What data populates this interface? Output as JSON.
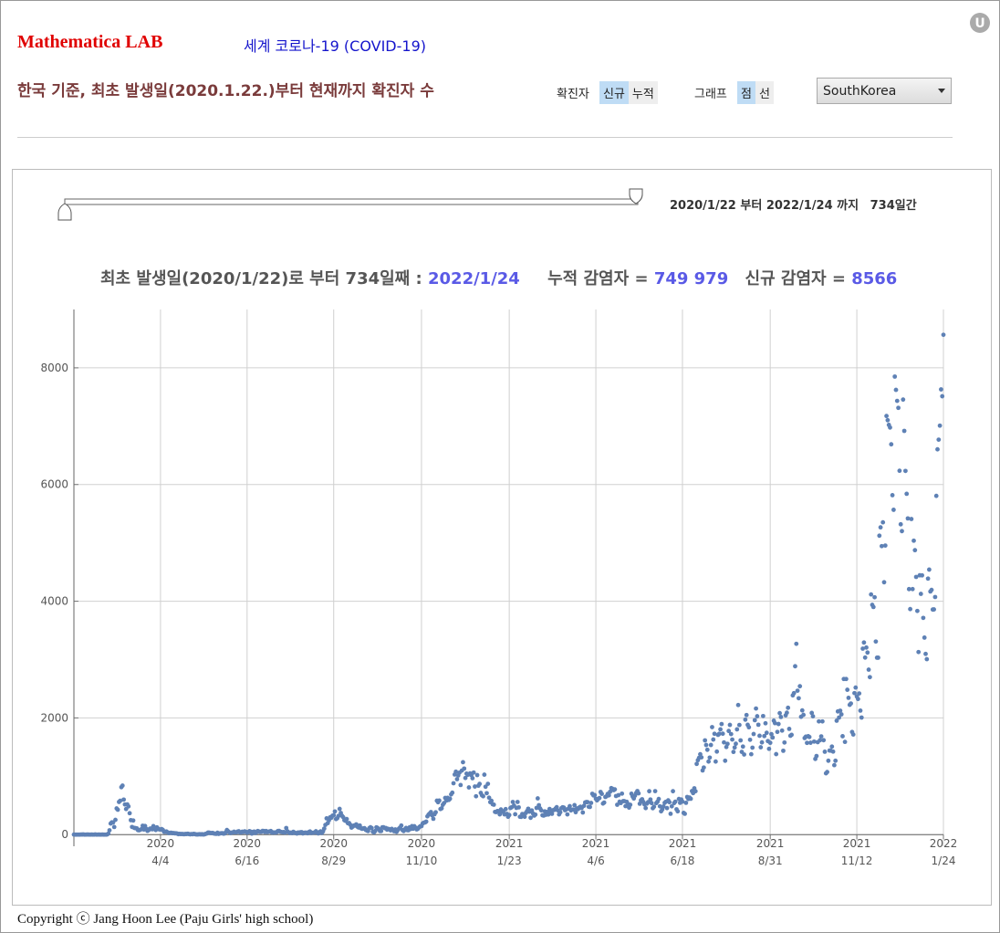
{
  "header": {
    "brand": "Mathematica LAB",
    "title": "세계 코로나-19 (COVID-19)",
    "subtitle": "한국 기준, 최초 발생일(2020.1.22.)부터 현재까지 확진자 수"
  },
  "controls": {
    "case_label": "확진자",
    "case_options": [
      "신규",
      "누적"
    ],
    "graph_label": "그래프",
    "graph_options": [
      "점",
      "선"
    ],
    "country": "SouthKorea"
  },
  "range": {
    "start": "2020/1/22",
    "from_word": "부터",
    "end": "2022/1/24",
    "to_word": "까지",
    "days": "734일간"
  },
  "chart_data": {
    "type": "scatter",
    "title": "최초 발생일(2020/1/22)로 부터 734일째 :",
    "title_date": "2022/1/24",
    "total_label": "누적 감염자 =",
    "total": "749 979",
    "new_label": "신규 감염자 =",
    "new": "8566",
    "color": "#5e81b5",
    "grid": true,
    "xlim": [
      0,
      733
    ],
    "xticks": [
      {
        "value": 73,
        "label": "2020\n4/4"
      },
      {
        "value": 146,
        "label": "2020\n6/16"
      },
      {
        "value": 219,
        "label": "2020\n8/29"
      },
      {
        "value": 293,
        "label": "2020\n11/10"
      },
      {
        "value": 367,
        "label": "2021\n1/23"
      },
      {
        "value": 440,
        "label": "2021\n4/6"
      },
      {
        "value": 513,
        "label": "2021\n6/18"
      },
      {
        "value": 587,
        "label": "2021\n8/31"
      },
      {
        "value": 660,
        "label": "2021\n11/12"
      },
      {
        "value": 733,
        "label": "2022\n1/24"
      }
    ],
    "ylim": [
      -200,
      9000
    ],
    "yticks": [
      0,
      2000,
      4000,
      6000,
      8000
    ],
    "values": [
      1,
      0,
      0,
      0,
      0,
      0,
      2,
      1,
      3,
      0,
      0,
      1,
      2,
      0,
      0,
      1,
      0,
      0,
      3,
      0,
      0,
      1,
      0,
      0,
      1,
      0,
      0,
      0,
      2,
      16,
      74,
      190,
      210,
      207,
      130,
      253,
      449,
      427,
      560,
      580,
      813,
      840,
      600,
      516,
      438,
      518,
      483,
      367,
      248,
      131,
      242,
      114,
      110,
      107,
      76,
      74,
      84,
      93,
      152,
      87,
      147,
      98,
      64,
      76,
      100,
      104,
      91,
      146,
      105,
      78,
      125,
      101,
      89,
      86,
      94,
      81,
      47,
      47,
      53,
      39,
      27,
      30,
      32,
      25,
      27,
      22,
      22,
      18,
      8,
      13,
      9,
      11,
      8,
      6,
      10,
      10,
      14,
      9,
      4,
      9,
      6,
      13,
      8,
      3,
      2,
      4,
      6,
      3,
      6,
      2,
      4,
      12,
      18,
      34,
      35,
      27,
      26,
      29,
      19,
      15,
      13,
      32,
      12,
      20,
      23,
      25,
      16,
      19,
      40,
      79,
      58,
      39,
      27,
      35,
      38,
      49,
      39,
      39,
      51,
      57,
      37,
      38,
      50,
      45,
      56,
      48,
      34,
      43,
      59,
      49,
      17,
      46,
      51,
      28,
      42,
      62,
      51,
      46,
      48,
      63,
      62,
      44,
      61,
      43,
      50,
      54,
      61,
      33,
      39,
      36,
      35,
      44,
      62,
      63,
      50,
      45,
      39,
      45,
      33,
      113,
      58,
      39,
      28,
      34,
      26,
      48,
      34,
      26,
      18,
      36,
      28,
      41,
      43,
      20,
      30,
      34,
      33,
      23,
      43,
      54,
      28,
      31,
      33,
      36,
      58,
      34,
      20,
      43,
      56,
      28,
      54,
      103,
      166,
      279,
      197,
      246,
      297,
      288,
      324,
      332,
      397,
      266,
      280,
      320,
      441,
      371,
      323,
      299,
      248,
      235,
      267,
      195,
      198,
      168,
      119,
      136,
      156,
      155,
      176,
      136,
      121,
      156,
      109,
      99,
      106,
      110,
      82,
      70,
      61,
      110,
      126,
      113,
      50,
      38,
      61,
      125,
      114,
      95,
      61,
      61,
      125,
      126,
      110,
      113,
      84,
      98,
      91,
      73,
      98,
      76,
      58,
      89,
      47,
      77,
      102,
      121,
      155,
      77,
      61,
      91,
      114,
      76,
      75,
      125,
      97,
      146,
      101,
      143,
      118,
      89,
      100,
      126,
      143,
      145,
      191,
      205,
      208,
      223,
      313,
      343,
      363,
      386,
      330,
      271,
      349,
      382,
      581,
      555,
      583,
      438,
      451,
      511,
      540,
      629,
      583,
      631,
      594,
      615,
      689,
      718,
      880,
      1030,
      1078,
      950,
      1014,
      1062,
      850,
      1097,
      1241,
      1132,
      970,
      1045,
      1025,
      808,
      1050,
      1020,
      967,
      1064,
      824,
      657,
      1020,
      838,
      869,
      715,
      674,
      657,
      1027,
      820,
      710,
      870,
      633,
      557,
      580,
      520,
      513,
      389,
      386,
      404,
      400,
      346,
      431,
      392,
      401,
      346,
      437,
      355,
      305,
      336,
      456,
      469,
      559,
      497,
      349,
      458,
      559,
      467,
      306,
      303,
      354,
      336,
      305,
      371,
      403,
      444,
      393,
      288,
      414,
      363,
      326,
      343,
      457,
      621,
      504,
      448,
      416,
      332,
      326,
      398,
      340,
      389,
      344,
      440,
      396,
      356,
      418,
      424,
      446,
      470,
      416,
      346,
      382,
      452,
      469,
      463,
      418,
      430,
      346,
      447,
      488,
      415,
      428,
      430,
      505,
      384,
      449,
      437,
      464,
      478,
      455,
      379,
      494,
      551,
      558,
      557,
      477,
      473,
      543,
      700,
      671,
      677,
      614,
      587,
      614,
      627,
      731,
      698,
      532,
      549,
      645,
      658,
      698,
      673,
      735,
      797,
      785,
      762,
      775,
      661,
      512,
      676,
      564,
      541,
      702,
      574,
      574,
      488,
      563,
      525,
      463,
      511,
      701,
      654,
      619,
      668,
      715,
      747,
      707,
      529,
      587,
      606,
      561,
      516,
      454,
      530,
      556,
      744,
      602,
      540,
      452,
      478,
      745,
      540,
      565,
      611,
      485,
      399,
      430,
      482,
      545,
      563,
      454,
      587,
      556,
      357,
      485,
      744,
      540,
      565,
      434,
      399,
      611,
      545,
      602,
      565,
      372,
      357,
      545,
      645,
      610,
      634,
      614,
      746,
      711,
      794,
      743,
      1212,
      1275,
      1316,
      1378,
      1324,
      1100,
      1150,
      1615,
      1536,
      1454,
      1252,
      1320,
      1536,
      1842,
      1630,
      1728,
      1252,
      1423,
      1710,
      1728,
      1804,
      1895,
      1729,
      1580,
      1266,
      1501,
      1555,
      1776,
      1880,
      1723,
      1629,
      1417,
      1492,
      1557,
      1804,
      2221,
      1879,
      1615,
      1418,
      1509,
      1373,
      1970,
      2049,
      1882,
      1840,
      1625,
      1378,
      1490,
      1724,
      1961,
      2161,
      2029,
      1883,
      1694,
      1497,
      1581,
      2032,
      1689,
      1908,
      1745,
      1602,
      1470,
      1574,
      1722,
      1664,
      1953,
      1910,
      1379,
      1760,
      1896,
      2082,
      2016,
      1783,
      1437,
      1578,
      2044,
      2089,
      2173,
      1812,
      1694,
      1710,
      2386,
      2425,
      2885,
      3270,
      2466,
      2337,
      2543,
      2019,
      2129,
      2052,
      1655,
      1679,
      1572,
      1686,
      1673,
      1575,
      2085,
      2028,
      1594,
      1297,
      1347,
      1584,
      1940,
      1618,
      1684,
      1940,
      1618,
      1420,
      1050,
      1073,
      1266,
      1441,
      1439,
      1508,
      1423,
      1190,
      1266,
      1952,
      2111,
      2006,
      2124,
      2061,
      1686,
      2667,
      1589,
      2667,
      2482,
      2344,
      2224,
      2247,
      1759,
      1715,
      2425,
      2520,
      2368,
      2324,
      2419,
      2125,
      2006,
      3187,
      3292,
      3034,
      3206,
      3120,
      2827,
      2699,
      4116,
      3938,
      3901,
      4068,
      3309,
      3032,
      3032,
      5123,
      5266,
      4944,
      5352,
      4325,
      4954,
      7175,
      7102,
      7022,
      6977,
      6689,
      5817,
      5567,
      7850,
      7622,
      7434,
      7314,
      6236,
      5318,
      5201,
      7456,
      6919,
      6233,
      5841,
      5419,
      4207,
      3865,
      5409,
      4208,
      5037,
      4875,
      4416,
      3833,
      3129,
      4444,
      4126,
      4443,
      3714,
      3376,
      3097,
      3007,
      4388,
      4542,
      4167,
      4194,
      3857,
      3859,
      4072,
      5805,
      6603,
      6769,
      7009,
      7630,
      7513,
      8566
    ]
  },
  "footer": "Copyright ⓒ Jang Hoon Lee (Paju Girls' high school)"
}
